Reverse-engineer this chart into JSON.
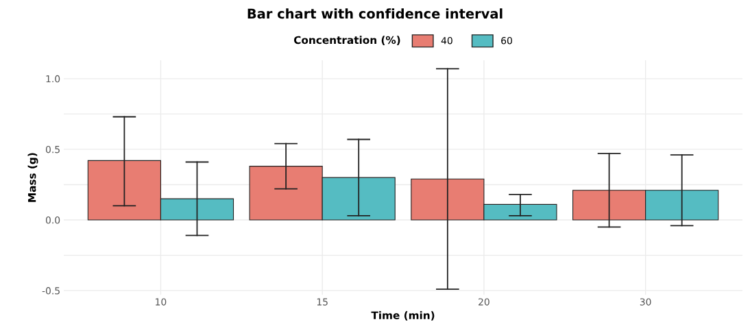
{
  "chart_data": {
    "type": "bar",
    "title": "Bar chart with confidence interval",
    "xlabel": "Time (min)",
    "ylabel": "Mass (g)",
    "legend_title": "Concentration (%)",
    "categories": [
      "10",
      "15",
      "20",
      "30"
    ],
    "series": [
      {
        "name": "40",
        "color": "#e87d72",
        "values": [
          0.42,
          0.38,
          0.29,
          0.21
        ],
        "errors": [
          [
            0.1,
            0.73
          ],
          [
            0.22,
            0.54
          ],
          [
            -0.49,
            1.07
          ],
          [
            -0.05,
            0.47
          ]
        ]
      },
      {
        "name": "60",
        "color": "#55bcc2",
        "values": [
          0.15,
          0.3,
          0.11,
          0.21
        ],
        "errors": [
          [
            -0.11,
            0.41
          ],
          [
            0.03,
            0.57
          ],
          [
            0.03,
            0.18
          ],
          [
            -0.04,
            0.46
          ]
        ]
      }
    ],
    "ylim": [
      -0.53,
      1.13
    ],
    "yticks": [
      {
        "value": -0.5,
        "label": "-0.5"
      },
      {
        "value": -0.25,
        "label": null
      },
      {
        "value": 0.0,
        "label": "0.0"
      },
      {
        "value": 0.25,
        "label": null
      },
      {
        "value": 0.5,
        "label": "0.5"
      },
      {
        "value": 0.75,
        "label": null
      },
      {
        "value": 1.0,
        "label": "1.0"
      }
    ],
    "grid": true,
    "legend": "top"
  }
}
